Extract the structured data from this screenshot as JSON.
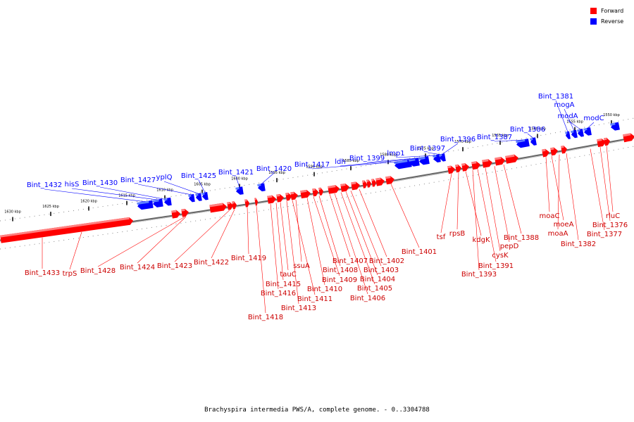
{
  "caption": "Brachyspira intermedia PWS/A, complete genome. - 0..3304788",
  "legend": [
    {
      "label": "Forward",
      "color": "#ff0000"
    },
    {
      "label": "Reverse",
      "color": "#0000ff"
    }
  ],
  "colors": {
    "forward": "#ff0000",
    "reverse": "#0000ff",
    "backbone": "#808080"
  },
  "ticks": [
    "1630 kbp",
    "1625 kbp",
    "1620 kbp",
    "1615 kbp",
    "1610 kbp",
    "1605 kbp",
    "1600 kbp",
    "1595 kbp",
    "1590 kbp",
    "1585 kbp",
    "1580 kbp",
    "1575 kbp",
    "1570 kbp",
    "1565 kbp",
    "1560 kbp",
    "1555 kbp",
    "1550 kbp"
  ],
  "reverse_genes": [
    "Bint_1432",
    "hisS",
    "Bint_1430",
    "Bint_1427",
    "yplQ",
    "Bint_1425",
    "Bint_1421",
    "Bint_1420",
    "Bint_1417",
    "ldh",
    "Bint_1399",
    "lmp1",
    "Bint_1397",
    "Bint_1396",
    "Bint_1387",
    "Bint_1386",
    "Bint_1381",
    "mogA",
    "modA",
    "modC"
  ],
  "forward_genes": [
    "Bint_1433",
    "trpS",
    "Bint_1428",
    "Bint_1424",
    "Bint_1423",
    "Bint_1422",
    "Bint_1419",
    "Bint_1418",
    "Bint_1416",
    "Bint_1415",
    "tauC",
    "Bint_1413",
    "Bint_1411",
    "ssuA",
    "Bint_1410",
    "Bint_1409",
    "Bint_1408",
    "Bint_1407",
    "Bint_1406",
    "Bint_1405",
    "Bint_1404",
    "Bint_1403",
    "Bint_1402",
    "Bint_1401",
    "tsf",
    "rpsB",
    "kdgK",
    "Bint_1393",
    "Bint_1391",
    "cysK",
    "pepD",
    "Bint_1388",
    "moaC",
    "moeA",
    "moaA",
    "Bint_1382",
    "Bint_1377",
    "Bint_1376",
    "rluC"
  ]
}
